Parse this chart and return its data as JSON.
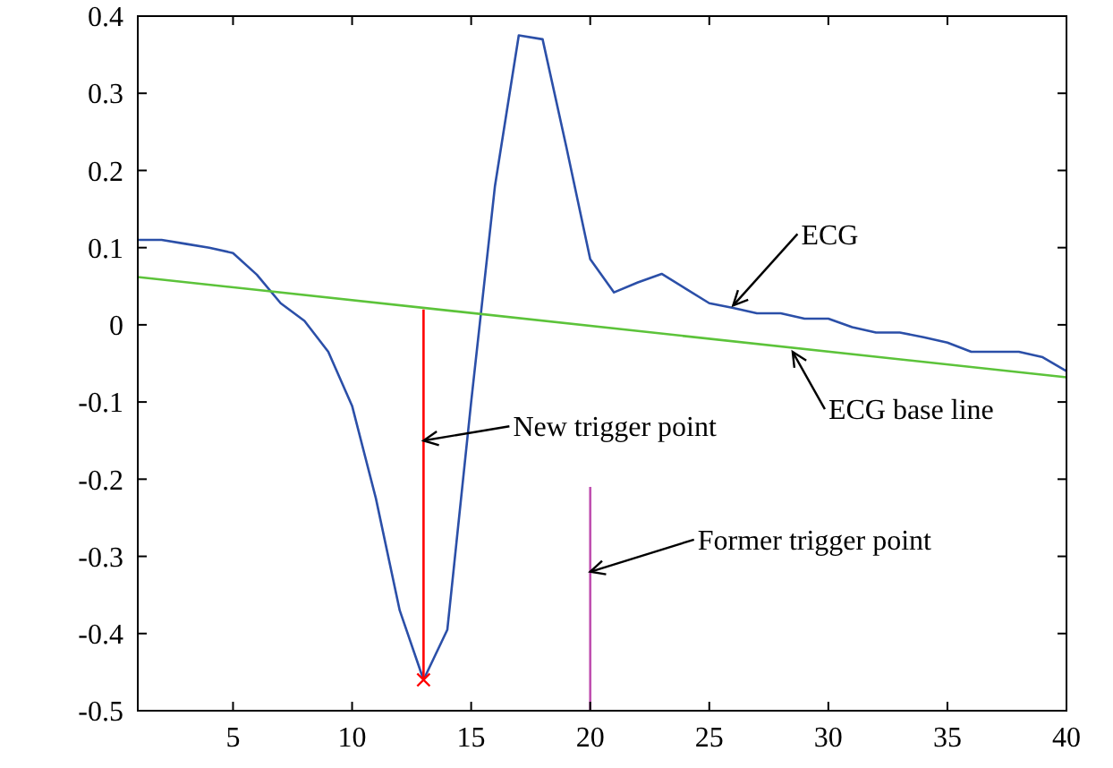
{
  "chart_data": {
    "type": "line",
    "xlim": [
      1,
      40
    ],
    "xticks": [
      5,
      10,
      15,
      20,
      25,
      30,
      35,
      40
    ],
    "ylim": [
      -0.5,
      0.4
    ],
    "yticks": [
      -0.5,
      -0.4,
      -0.3,
      -0.2,
      -0.1,
      0,
      0.1,
      0.2,
      0.3,
      0.4
    ],
    "grid": false,
    "marker": "none",
    "line_style": "solid",
    "series": [
      {
        "color": "#2b4fa8",
        "x": [
          1,
          2,
          3,
          4,
          5,
          6,
          7,
          8,
          9,
          10,
          11,
          12,
          13,
          14,
          15,
          16,
          17,
          18,
          19,
          20,
          21,
          22,
          23,
          24,
          25,
          26,
          27,
          28,
          29,
          30,
          31,
          32,
          33,
          34,
          35,
          36,
          37,
          38,
          39,
          40
        ],
        "values": [
          0.11,
          0.11,
          0.105,
          0.1,
          0.093,
          0.065,
          0.028,
          0.005,
          -0.035,
          -0.105,
          -0.225,
          -0.37,
          -0.46,
          -0.395,
          -0.1,
          0.18,
          0.375,
          0.37,
          0.23,
          0.085,
          0.042,
          0.055,
          0.066,
          0.047,
          0.028,
          0.022,
          0.015,
          0.015,
          0.008,
          0.008,
          -0.003,
          -0.01,
          -0.01,
          -0.016,
          -0.023,
          -0.035,
          -0.035,
          -0.035,
          -0.042,
          -0.06
        ]
      },
      {
        "color": "#5cc33a",
        "x": [
          1,
          40
        ],
        "values": [
          0.062,
          -0.068
        ]
      },
      {
        "color": "#ff0000",
        "x": [
          13,
          13
        ],
        "values": [
          -0.46,
          0.02
        ]
      },
      {
        "type": "scatter",
        "marker": "cross",
        "color": "#ff0000",
        "x": [
          13
        ],
        "values": [
          -0.46
        ]
      },
      {
        "color": "#c050b0",
        "x": [
          20,
          20
        ],
        "values": [
          -0.5,
          -0.21
        ]
      }
    ],
    "annotations": [
      {
        "text": "ECG",
        "x": 26,
        "y": 0.025
      },
      {
        "text": "ECG base line",
        "x": 28.5,
        "y": -0.035
      },
      {
        "text": "New trigger point",
        "x": 13,
        "y": -0.15
      },
      {
        "text": "Former trigger point",
        "x": 20,
        "y": -0.32
      }
    ]
  }
}
